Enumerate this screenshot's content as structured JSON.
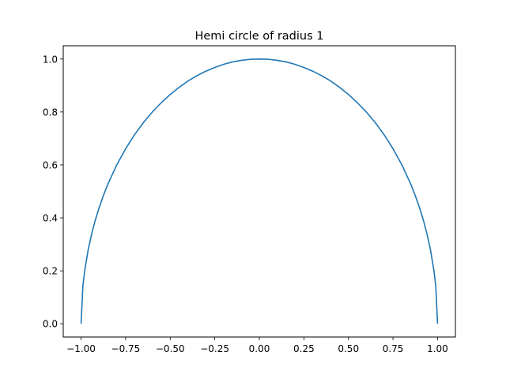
{
  "chart_data": {
    "type": "line",
    "title": "Hemi circle of radius 1",
    "xlabel": "",
    "ylabel": "",
    "xlim": [
      -1.1,
      1.1
    ],
    "ylim": [
      -0.05,
      1.05
    ],
    "xticks": [
      -1.0,
      -0.75,
      -0.5,
      -0.25,
      0.0,
      0.25,
      0.5,
      0.75,
      1.0
    ],
    "xtick_labels": [
      "−1.00",
      "−0.75",
      "−0.50",
      "−0.25",
      "0.00",
      "0.25",
      "0.50",
      "0.75",
      "1.00"
    ],
    "yticks": [
      0.0,
      0.2,
      0.4,
      0.6,
      0.8,
      1.0
    ],
    "ytick_labels": [
      "0.0",
      "0.2",
      "0.4",
      "0.6",
      "0.8",
      "1.0"
    ],
    "grid": false,
    "series": [
      {
        "color": "#1f77b4",
        "x": [
          -1.0,
          -0.99,
          -0.98,
          -0.96,
          -0.94,
          -0.92,
          -0.9,
          -0.875,
          -0.85,
          -0.8,
          -0.75,
          -0.7,
          -0.65,
          -0.6,
          -0.55,
          -0.5,
          -0.45,
          -0.4,
          -0.35,
          -0.3,
          -0.25,
          -0.2,
          -0.15,
          -0.1,
          -0.05,
          0.0,
          0.05,
          0.1,
          0.15,
          0.2,
          0.25,
          0.3,
          0.35,
          0.4,
          0.45,
          0.5,
          0.55,
          0.6,
          0.65,
          0.7,
          0.75,
          0.8,
          0.85,
          0.875,
          0.9,
          0.92,
          0.94,
          0.96,
          0.98,
          0.99,
          1.0
        ],
        "y": [
          0.0,
          0.141,
          0.199,
          0.28,
          0.341,
          0.392,
          0.436,
          0.484,
          0.527,
          0.6,
          0.661,
          0.714,
          0.76,
          0.8,
          0.835,
          0.866,
          0.893,
          0.917,
          0.937,
          0.954,
          0.968,
          0.98,
          0.989,
          0.995,
          0.999,
          1.0,
          0.999,
          0.995,
          0.989,
          0.98,
          0.968,
          0.954,
          0.937,
          0.917,
          0.893,
          0.866,
          0.835,
          0.8,
          0.76,
          0.714,
          0.661,
          0.6,
          0.527,
          0.484,
          0.436,
          0.392,
          0.341,
          0.28,
          0.199,
          0.141,
          0.0
        ]
      }
    ]
  }
}
